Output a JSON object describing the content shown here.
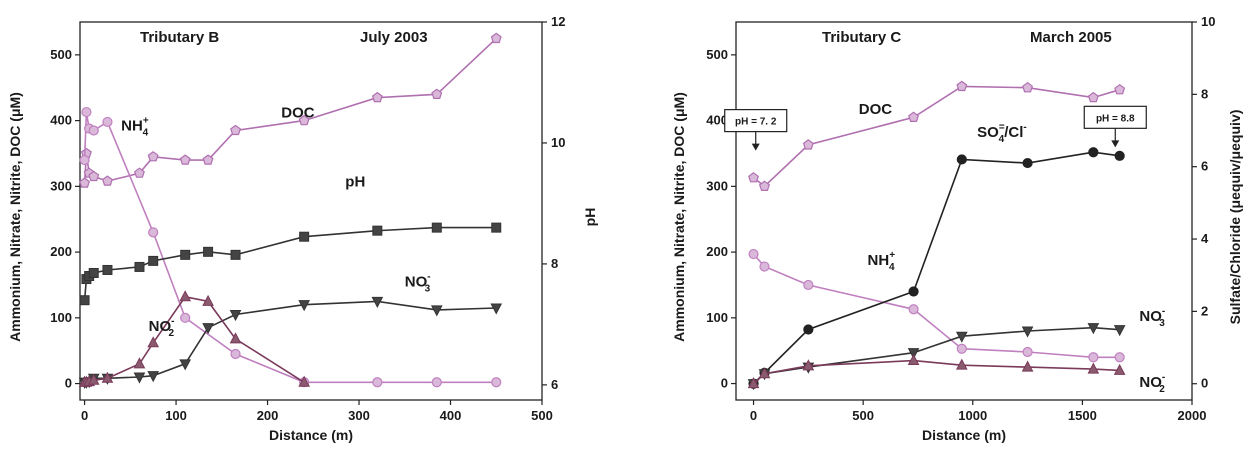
{
  "chart_data": [
    {
      "type": "line",
      "annotations": {
        "site": "Tributary B",
        "date": "July 2003"
      },
      "xlabel": "Distance (m)",
      "ylabel": "Ammonium, Nitrate, Nitrite, DOC (μM)",
      "y2label": "pH",
      "xlim": [
        -5,
        500
      ],
      "ylim": [
        -25,
        550
      ],
      "y2lim": [
        5.75,
        12
      ],
      "xticks": [
        "0",
        "100",
        "200",
        "300",
        "400",
        "500"
      ],
      "yticks": [
        "0",
        "100",
        "200",
        "300",
        "400",
        "500"
      ],
      "y2ticks": [
        "6",
        "8",
        "10",
        "12"
      ],
      "series": [
        {
          "name": "DOC",
          "axis": "left",
          "marker": "pentagon",
          "color": "#b070b0",
          "fill": "#d9b8d9",
          "x": [
            0,
            2,
            5,
            10,
            25,
            60,
            75,
            110,
            135,
            165,
            240,
            320,
            385,
            450
          ],
          "y": [
            305,
            350,
            320,
            315,
            308,
            320,
            345,
            340,
            340,
            385,
            400,
            435,
            440,
            525
          ]
        },
        {
          "name": "NH4+",
          "axis": "left",
          "marker": "circle",
          "color": "#c080c0",
          "fill": "#d9b8d9",
          "x": [
            0,
            2,
            5,
            10,
            25,
            75,
            110,
            165,
            240,
            320,
            385,
            450
          ],
          "y": [
            340,
            413,
            388,
            385,
            398,
            230,
            100,
            45,
            2,
            2,
            2,
            2
          ]
        },
        {
          "name": "pH",
          "axis": "right",
          "marker": "square",
          "color": "#333333",
          "fill": "#444444",
          "x": [
            0,
            2,
            5,
            10,
            25,
            60,
            75,
            110,
            135,
            165,
            240,
            320,
            385,
            450
          ],
          "y": [
            7.4,
            7.75,
            7.8,
            7.85,
            7.9,
            7.95,
            8.05,
            8.15,
            8.2,
            8.15,
            8.45,
            8.55,
            8.6,
            8.6
          ]
        },
        {
          "name": "NO3-",
          "axis": "left",
          "marker": "triangle-down",
          "color": "#333333",
          "fill": "#444444",
          "x": [
            0,
            2,
            5,
            10,
            25,
            60,
            75,
            110,
            135,
            165,
            240,
            320,
            385,
            450
          ],
          "y": [
            2,
            2,
            3,
            8,
            8,
            10,
            12,
            30,
            85,
            105,
            120,
            125,
            112,
            115
          ]
        },
        {
          "name": "NO2-",
          "axis": "left",
          "marker": "triangle-up",
          "color": "#7a3a5a",
          "fill": "#8a5a6e",
          "x": [
            0,
            2,
            5,
            10,
            25,
            60,
            75,
            110,
            135,
            165,
            240
          ],
          "y": [
            2,
            2,
            3,
            5,
            8,
            30,
            62,
            132,
            125,
            68,
            2
          ]
        }
      ],
      "labels": [
        {
          "text": "DOC",
          "x": 215,
          "y": 405
        },
        {
          "text": "NH",
          "sub": "4",
          "sup": "+",
          "x": 40,
          "y": 385
        },
        {
          "text": "pH",
          "x": 285,
          "y": 300
        },
        {
          "text": "NO",
          "sub": "3",
          "sup": "-",
          "x": 350,
          "y": 148
        },
        {
          "text": "NO",
          "sub": "2",
          "sup": "-",
          "x": 70,
          "y": 80
        }
      ]
    },
    {
      "type": "line",
      "annotations": {
        "site": "Tributary C",
        "date": "March 2005"
      },
      "xlabel": "Distance (m)",
      "ylabel": "Ammonium, Nitrate, Nitrite, DOC (μM)",
      "y2label": "Sulfate/Chloride (μequiv/μequiv)",
      "xlim": [
        -80,
        2000
      ],
      "ylim": [
        -25,
        550
      ],
      "y2lim": [
        -0.45,
        10
      ],
      "xticks": [
        "0",
        "500",
        "1000",
        "1500",
        "2000"
      ],
      "yticks": [
        "0",
        "100",
        "200",
        "300",
        "400",
        "500"
      ],
      "y2ticks": [
        "0",
        "2",
        "4",
        "6",
        "8",
        "10"
      ],
      "boxes": [
        {
          "text": "pH = 7. 2",
          "x": 10,
          "y": 400
        },
        {
          "text": "pH = 8.8",
          "x": 1650,
          "y": 405
        }
      ],
      "series": [
        {
          "name": "DOC",
          "axis": "left",
          "marker": "pentagon",
          "color": "#b070b0",
          "fill": "#d9b8d9",
          "x": [
            0,
            50,
            250,
            730,
            950,
            1250,
            1550,
            1670
          ],
          "y": [
            313,
            300,
            363,
            405,
            452,
            450,
            435,
            447
          ]
        },
        {
          "name": "NH4+",
          "axis": "left",
          "marker": "circle",
          "color": "#c080c0",
          "fill": "#d9b8d9",
          "x": [
            0,
            50,
            250,
            730,
            950,
            1250,
            1550,
            1670
          ],
          "y": [
            197,
            178,
            150,
            113,
            53,
            48,
            40,
            40
          ]
        },
        {
          "name": "SO4=/Cl-",
          "axis": "right",
          "marker": "circle",
          "color": "#222222",
          "fill": "#222222",
          "x": [
            0,
            50,
            250,
            730,
            950,
            1250,
            1550,
            1670
          ],
          "y": [
            0,
            0.3,
            1.5,
            2.55,
            6.2,
            6.1,
            6.4,
            6.3
          ]
        },
        {
          "name": "NO3-",
          "axis": "left",
          "marker": "triangle-down",
          "color": "#333333",
          "fill": "#444444",
          "x": [
            0,
            50,
            250,
            730,
            950,
            1250,
            1550,
            1670
          ],
          "y": [
            0,
            15,
            25,
            47,
            72,
            80,
            85,
            82
          ]
        },
        {
          "name": "NO2-",
          "axis": "left",
          "marker": "triangle-up",
          "color": "#7a3a5a",
          "fill": "#8a5a6e",
          "x": [
            0,
            50,
            250,
            730,
            950,
            1250,
            1550,
            1670
          ],
          "y": [
            0,
            15,
            27,
            35,
            28,
            25,
            22,
            20
          ]
        }
      ],
      "labels": [
        {
          "text": "DOC",
          "x": 480,
          "y": 410
        },
        {
          "text": "SO",
          "sub": "4",
          "sup": "=",
          "after": "/Cl",
          "sup2": "-",
          "x": 1020,
          "y": 375
        },
        {
          "text": "NH",
          "sub": "4",
          "sup": "+",
          "x": 520,
          "y": 180
        },
        {
          "text": "NO",
          "sub": "3",
          "sup": "-",
          "x": 1760,
          "y": 95
        },
        {
          "text": "NO",
          "sub": "2",
          "sup": "-",
          "x": 1760,
          "y": -5
        }
      ]
    }
  ]
}
